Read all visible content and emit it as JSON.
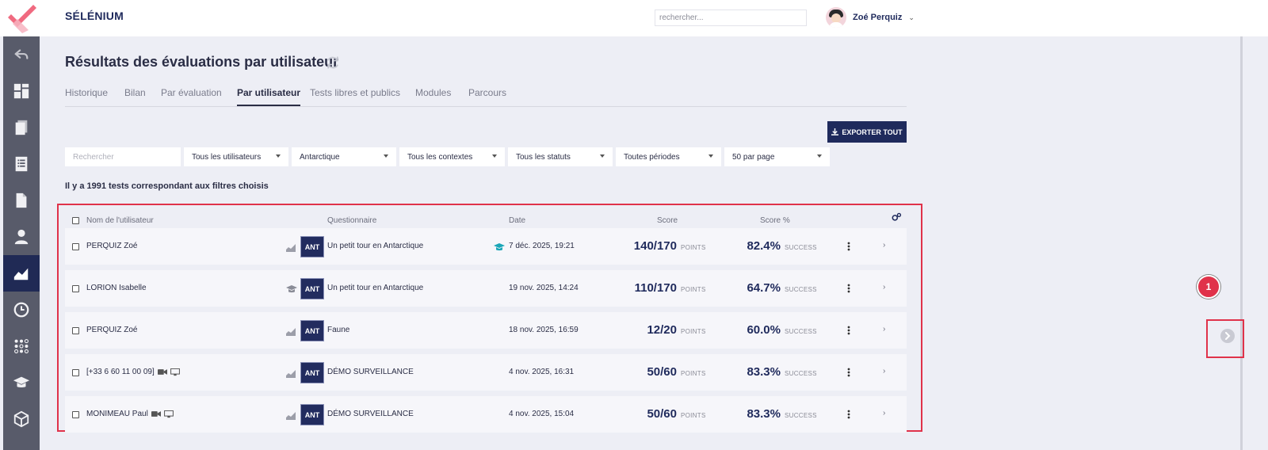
{
  "app": {
    "brand": "SÉLÉNIUM"
  },
  "topbar": {
    "search_placeholder": "rechercher...",
    "user_name": "Zoé Perquiz"
  },
  "sidebar": {
    "items": [
      {
        "icon": "back-arrow-icon",
        "active": false
      },
      {
        "icon": "dashboard-icon",
        "active": false
      },
      {
        "icon": "documents-stack-icon",
        "active": false
      },
      {
        "icon": "list-icon",
        "active": false
      },
      {
        "icon": "file-icon",
        "active": false
      },
      {
        "icon": "user-icon",
        "active": false
      },
      {
        "icon": "chart-area-icon",
        "active": true
      },
      {
        "icon": "clock-icon",
        "active": false
      },
      {
        "icon": "dots-grid-icon",
        "active": false
      },
      {
        "icon": "graduation-cap-icon",
        "active": false
      },
      {
        "icon": "cube-icon",
        "active": false
      }
    ]
  },
  "page": {
    "title": "Résultats des évaluations par utilisateur",
    "tabs": [
      {
        "label": "Historique",
        "active": false
      },
      {
        "label": "Bilan",
        "active": false
      },
      {
        "label": "Par évaluation",
        "active": false
      },
      {
        "label": "Par utilisateur",
        "active": true
      },
      {
        "label": "Tests libres et publics",
        "active": false
      },
      {
        "label": "Modules",
        "active": false
      },
      {
        "label": "Parcours",
        "active": false
      }
    ],
    "export_label": "EXPORTER TOUT",
    "filters": {
      "search_placeholder": "Rechercher",
      "users": "Tous les utilisateurs",
      "region": "Antarctique",
      "contexts": "Tous les contextes",
      "statuses": "Tous les statuts",
      "periods": "Toutes périodes",
      "per_page": "50 par page"
    },
    "results_count": "Il y a 1991 tests correspondant aux filtres choisis"
  },
  "table": {
    "headers": {
      "name": "Nom de l'utilisateur",
      "quiz": "Questionnaire",
      "date": "Date",
      "score": "Score",
      "score_pct": "Score %"
    },
    "rows": [
      {
        "name": "PERQUIZ Zoé",
        "badge": "ANT",
        "quiz": "Un petit tour en Antarctique",
        "date": "7 déc. 2025, 19:21",
        "score": "140/170",
        "score_unit": "POINTS",
        "pct": "82.4%",
        "pct_unit": "SUCCESS",
        "type_icon": "chart-icon",
        "date_icon": "graduation-cap-icon",
        "extra_icons": []
      },
      {
        "name": "LORION Isabelle",
        "badge": "ANT",
        "quiz": "Un petit tour en Antarctique",
        "date": "19 nov. 2025, 14:24",
        "score": "110/170",
        "score_unit": "POINTS",
        "pct": "64.7%",
        "pct_unit": "SUCCESS",
        "type_icon": "graduation-cap-icon",
        "date_icon": "",
        "extra_icons": []
      },
      {
        "name": "PERQUIZ Zoé",
        "badge": "ANT",
        "quiz": "Faune",
        "date": "18 nov. 2025, 16:59",
        "score": "12/20",
        "score_unit": "POINTS",
        "pct": "60.0%",
        "pct_unit": "SUCCESS",
        "type_icon": "chart-icon",
        "date_icon": "",
        "extra_icons": []
      },
      {
        "name": "[+33 6 60 11 00 09]",
        "badge": "ANT",
        "quiz": "DÉMO SURVEILLANCE",
        "date": "4 nov. 2025, 16:31",
        "score": "50/60",
        "score_unit": "POINTS",
        "pct": "83.3%",
        "pct_unit": "SUCCESS",
        "type_icon": "chart-icon",
        "date_icon": "",
        "extra_icons": [
          "camera-icon",
          "monitor-icon"
        ]
      },
      {
        "name": "MONIMEAU Paul",
        "badge": "ANT",
        "quiz": "DÉMO SURVEILLANCE",
        "date": "4 nov. 2025, 15:04",
        "score": "50/60",
        "score_unit": "POINTS",
        "pct": "83.3%",
        "pct_unit": "SUCCESS",
        "type_icon": "chart-icon",
        "date_icon": "",
        "extra_icons": [
          "camera-icon",
          "monitor-icon"
        ]
      }
    ]
  },
  "annotation": {
    "marker": "1"
  },
  "colors": {
    "navy": "#1f2a5c",
    "accent_red": "#e0324a",
    "sidebar": "#585b6a",
    "teal": "#1aa6b7"
  }
}
